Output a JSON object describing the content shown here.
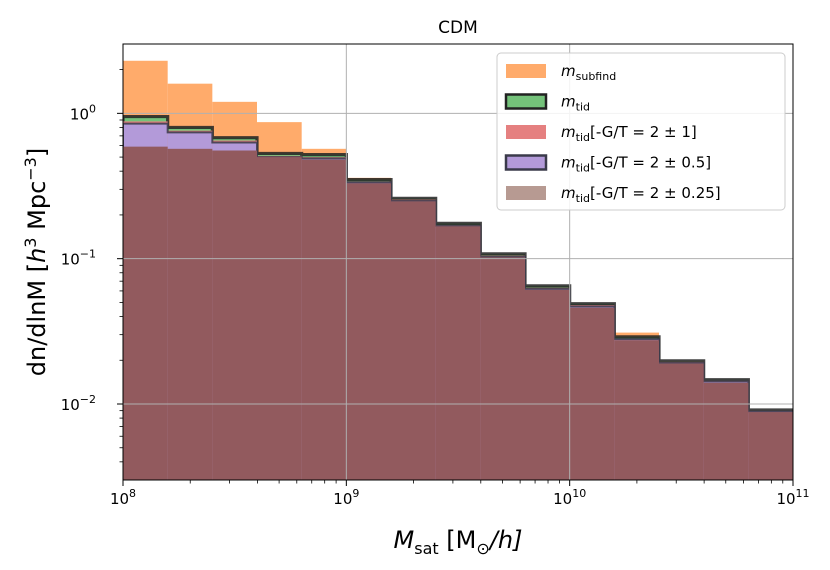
{
  "chart_data": {
    "type": "histogram",
    "title": "CDM",
    "xlabel": {
      "main": "M",
      "sub": "sat",
      "rest": " [M",
      "sub2": "⊙",
      "rest2": "/h]"
    },
    "ylabel": {
      "pre": "dn/dlnM [",
      "h": "h",
      "sup": "3",
      "mid": " Mpc",
      "sup2": "−3",
      "post": "]"
    },
    "x_scale": "log",
    "y_scale": "log",
    "xlim": [
      100000000.0,
      100000000000.0
    ],
    "ylim": [
      0.003,
      3.0
    ],
    "grid": true,
    "legend_position": "top-right",
    "x_ticks": [
      {
        "value": 100000000.0,
        "base": "10",
        "exp": "8"
      },
      {
        "value": 1000000000.0,
        "base": "10",
        "exp": "9"
      },
      {
        "value": 10000000000.0,
        "base": "10",
        "exp": "10"
      },
      {
        "value": 100000000000.0,
        "base": "10",
        "exp": "11"
      }
    ],
    "y_ticks": [
      {
        "value": 0.01,
        "base": "10",
        "exp": "−2"
      },
      {
        "value": 0.1,
        "base": "10",
        "exp": "−1"
      },
      {
        "value": 1,
        "base": "10",
        "exp": "0"
      }
    ],
    "bin_edges": [
      100000000.0,
      158500000.0,
      251200000.0,
      398100000.0,
      631000000.0,
      1000000000.0,
      1585000000.0,
      2512000000.0,
      3981000000.0,
      6310000000.0,
      10000000000.0,
      15850000000.0,
      25120000000.0,
      39810000000.0,
      63100000000.0,
      100000000000.0
    ],
    "series": [
      {
        "name": "m",
        "sub": "subfind",
        "suffix": "",
        "color": "#ffab6b",
        "edge": "none",
        "opacity": 1,
        "values": [
          2.3,
          1.6,
          1.2,
          0.87,
          0.57,
          0.36,
          0.245,
          0.158,
          0.092,
          0.058,
          0.041,
          0.031,
          0.015,
          0.0135,
          0.0075
        ]
      },
      {
        "name": "m",
        "sub": "tid",
        "suffix": "",
        "color": "#74c27a",
        "edge": "#222222",
        "opacity": 1,
        "values": [
          0.95,
          0.8,
          0.68,
          0.53,
          0.52,
          0.35,
          0.26,
          0.175,
          0.108,
          0.065,
          0.049,
          0.029,
          0.0198,
          0.0147,
          0.0091
        ]
      },
      {
        "name": "m",
        "sub": "tid",
        "suffix": "[-G/T = 2 ± 1]",
        "color": "#e58080",
        "edge": "none",
        "opacity": 1,
        "values": [
          0.88,
          0.76,
          0.65,
          0.51,
          0.5,
          0.34,
          0.255,
          0.17,
          0.105,
          0.063,
          0.048,
          0.028,
          0.0195,
          0.0145,
          0.009
        ]
      },
      {
        "name": "m",
        "sub": "tid",
        "suffix": "[-G/T = 2 ± 0.5]",
        "color": "#b39ad9",
        "edge": "#3a3a4a",
        "opacity": 1,
        "values": [
          0.85,
          0.74,
          0.63,
          0.5,
          0.49,
          0.335,
          0.25,
          0.168,
          0.103,
          0.062,
          0.047,
          0.028,
          0.0192,
          0.0143,
          0.0089
        ]
      },
      {
        "name": "m",
        "sub": "tid",
        "suffix": "[-G/T = 2 ± 0.25]",
        "color": "#925a5e",
        "edge": "none",
        "opacity": 1,
        "values": [
          0.59,
          0.57,
          0.555,
          0.5,
          0.48,
          0.33,
          0.248,
          0.167,
          0.102,
          0.061,
          0.046,
          0.0275,
          0.019,
          0.014,
          0.0088
        ]
      }
    ],
    "legend_colors": [
      "#ffab6b",
      "#74c27a",
      "#e58080",
      "#b39ad9",
      "#b79a92"
    ]
  }
}
